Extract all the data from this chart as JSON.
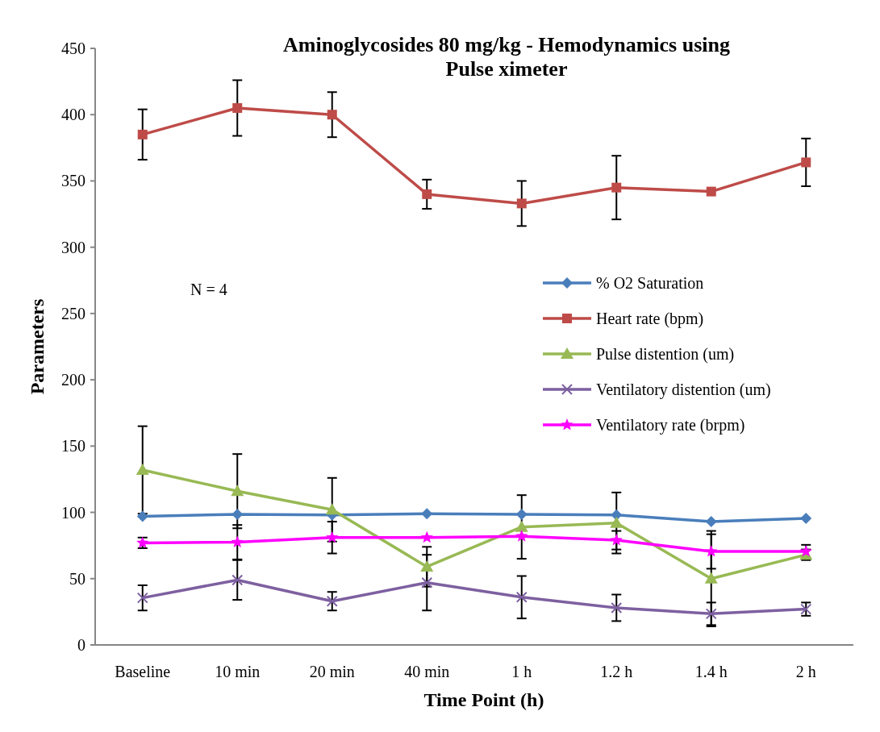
{
  "chart_data": {
    "type": "line",
    "title": "Aminoglycosides 80 mg/kg - Hemodynamics using Pulse ximeter",
    "xlabel": "Time Point (h)",
    "ylabel": "Parameters",
    "categories": [
      "Baseline",
      "10 min",
      "20 min",
      "40 min",
      "1 h",
      "1.2 h",
      "1.4 h",
      "2 h"
    ],
    "series": [
      {
        "name": "% O2 Saturation",
        "color": "#4a7ebb",
        "marker": "diamond",
        "values": [
          97,
          98.5,
          98,
          99,
          98.5,
          98,
          93,
          95.5
        ]
      },
      {
        "name": "Heart rate (bpm)",
        "color": "#be4b48",
        "marker": "square",
        "values": [
          385,
          405,
          400,
          340,
          333,
          345,
          342,
          364
        ],
        "errors": [
          19,
          21,
          17,
          11,
          17,
          24,
          null,
          18
        ]
      },
      {
        "name": "Pulse distention (um)",
        "color": "#98b954",
        "marker": "triangle",
        "values": [
          132,
          116,
          102,
          59,
          89,
          92,
          50,
          68
        ],
        "errors": [
          33,
          28,
          24,
          15,
          24,
          23,
          36,
          4
        ]
      },
      {
        "name": "Ventilatory distention (um)",
        "color": "#7d60a0",
        "marker": "cross",
        "values": [
          35.5,
          49,
          33,
          47,
          36,
          28,
          23.5,
          27
        ],
        "errors": [
          9.5,
          15,
          7,
          21,
          16,
          10,
          8.5,
          5
        ]
      },
      {
        "name": "Ventilatory rate (brpm)",
        "color": "#ff00ff",
        "marker": "star",
        "values": [
          77,
          77.5,
          81,
          81,
          82,
          79,
          70.5,
          70.5
        ],
        "errors": [
          4,
          13,
          12,
          null,
          null,
          7,
          13,
          5
        ]
      }
    ],
    "ylim": [
      0,
      450
    ],
    "yticks": [
      0,
      50,
      100,
      150,
      200,
      250,
      300,
      350,
      400,
      450
    ],
    "grid": false,
    "legend": "right",
    "annotations": [
      "N = 4"
    ]
  }
}
